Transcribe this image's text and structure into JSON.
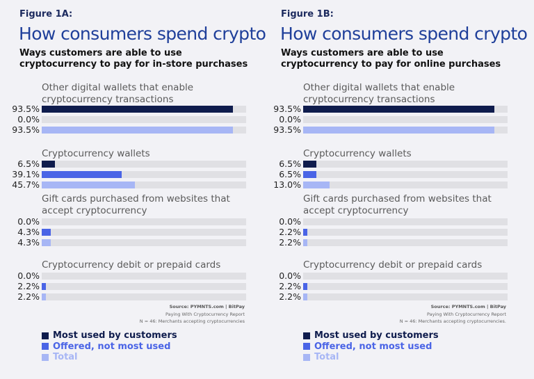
{
  "colors": {
    "most_used": "#0f1c4d",
    "offered": "#4a64e6",
    "total": "#a7b6f5",
    "track": "#e0e0e4",
    "title": "#1f3f9a"
  },
  "legend": [
    {
      "label": "Most used by customers",
      "color": "#0f1c4d"
    },
    {
      "label": "Offered, not most used",
      "color": "#4a64e6"
    },
    {
      "label": "Total",
      "color": "#a7b6f5"
    }
  ],
  "chart_data": [
    {
      "type": "bar",
      "orientation": "horizontal",
      "figure_label": "Figure 1A:",
      "title": "How consumers spend crypto",
      "subtitle": "Ways customers are able to use cryptocurrency to pay for in-store purchases",
      "xlim": [
        0,
        100
      ],
      "series_names": [
        "Most used by customers",
        "Offered, not most used",
        "Total"
      ],
      "categories": [
        {
          "label": "Other digital wallets that enable cryptocurrency transactions",
          "values": [
            93.5,
            0.0,
            93.5
          ],
          "display": [
            "93.5%",
            "0.0%",
            "93.5%"
          ]
        },
        {
          "label": "Cryptocurrency wallets",
          "values": [
            6.5,
            39.1,
            45.7
          ],
          "display": [
            "6.5%",
            "39.1%",
            "45.7%"
          ]
        },
        {
          "label": "Gift cards purchased from websites that accept cryptocurrency",
          "values": [
            0.0,
            4.3,
            4.3
          ],
          "display": [
            "0.0%",
            "4.3%",
            "4.3%"
          ]
        },
        {
          "label": "Cryptocurrency debit or prepaid cards",
          "values": [
            0.0,
            2.2,
            2.2
          ],
          "display": [
            "0.0%",
            "2.2%",
            "2.2%"
          ]
        }
      ],
      "source": "Source: PYMNTS.com | BitPay",
      "report": "Paying With Cryptocurrency Report",
      "note": "N = 46: Merchants accepting cryptocurrencies"
    },
    {
      "type": "bar",
      "orientation": "horizontal",
      "figure_label": "Figure 1B:",
      "title": "How consumers spend crypto",
      "subtitle": "Ways customers are able to use cryptocurrency to pay for online purchases",
      "xlim": [
        0,
        100
      ],
      "series_names": [
        "Most used by customers",
        "Offered, not most used",
        "Total"
      ],
      "categories": [
        {
          "label": "Other digital wallets that enable cryptocurrency transactions",
          "values": [
            93.5,
            0.0,
            93.5
          ],
          "display": [
            "93.5%",
            "0.0%",
            "93.5%"
          ]
        },
        {
          "label": "Cryptocurrency wallets",
          "values": [
            6.5,
            6.5,
            13.0
          ],
          "display": [
            "6.5%",
            "6.5%",
            "13.0%"
          ]
        },
        {
          "label": "Gift cards purchased from websites that accept cryptocurrency",
          "values": [
            0.0,
            2.2,
            2.2
          ],
          "display": [
            "0.0%",
            "2.2%",
            "2.2%"
          ]
        },
        {
          "label": "Cryptocurrency debit or prepaid cards",
          "values": [
            0.0,
            2.2,
            2.2
          ],
          "display": [
            "0.0%",
            "2.2%",
            "2.2%"
          ]
        }
      ],
      "source": "Source: PYMNTS.com | BitPay",
      "report": "Paying With Cryptocurrency Report",
      "note": "N = 46: Merchants accepting cryptocurrencies."
    }
  ]
}
